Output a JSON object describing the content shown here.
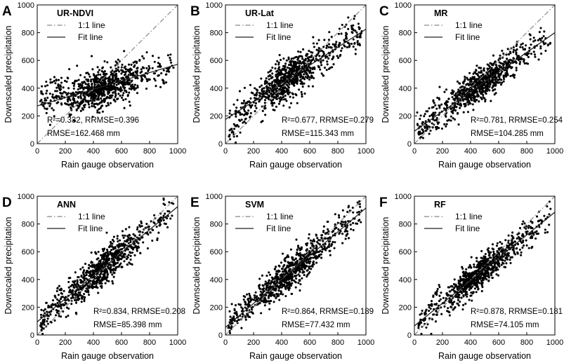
{
  "figure": {
    "legend": {
      "ref_label": "1:1 line",
      "fit_label": "Fit line"
    }
  },
  "chart_data": [
    {
      "type": "scatter",
      "letter": "A",
      "title": "UR-NDVI",
      "xlabel": "Rain gauge observation",
      "ylabel": "Downscaled precipitation",
      "xlim": [
        0,
        1000
      ],
      "ylim": [
        0,
        1000
      ],
      "xticks": [
        0,
        200,
        400,
        600,
        800,
        1000
      ],
      "yticks": [
        0,
        200,
        400,
        600,
        800,
        1000
      ],
      "fit": {
        "slope": 0.3,
        "intercept": 272
      },
      "stats": {
        "line1": "R²=0.332,  RRMSE=0.396",
        "line2": "RMSE=162.468 mm"
      },
      "scatter": {
        "n": 880,
        "noise": 68,
        "jitter": 14,
        "lowmode": 1
      }
    },
    {
      "type": "scatter",
      "letter": "B",
      "title": "UR-Lat",
      "xlabel": "Rain gauge observation",
      "ylabel": "Downscaled precipitation",
      "xlim": [
        0,
        1000
      ],
      "ylim": [
        0,
        1000
      ],
      "xticks": [
        0,
        200,
        400,
        600,
        800,
        1000
      ],
      "yticks": [
        0,
        200,
        400,
        600,
        800,
        1000
      ],
      "fit": {
        "slope": 0.65,
        "intercept": 175
      },
      "stats": {
        "line1": "R²=0.677,  RRMSE=0.279",
        "line2": "RMSE=115.343 mm"
      },
      "scatter": {
        "n": 880,
        "noise": 68,
        "jitter": 12,
        "lowmode": 2
      }
    },
    {
      "type": "scatter",
      "letter": "C",
      "title": "MR",
      "xlabel": "Rain gauge observation",
      "ylabel": "Downscaled precipitation",
      "xlim": [
        0,
        1000
      ],
      "ylim": [
        0,
        1000
      ],
      "xticks": [
        0,
        200,
        400,
        600,
        800,
        1000
      ],
      "yticks": [
        0,
        200,
        400,
        600,
        800,
        1000
      ],
      "fit": {
        "slope": 0.71,
        "intercept": 90
      },
      "stats": {
        "line1": "R²=0.781,  RRMSE=0.254",
        "line2": "RMSE=104.285 mm"
      },
      "scatter": {
        "n": 880,
        "noise": 58,
        "jitter": 10,
        "lowmode": 3
      }
    },
    {
      "type": "scatter",
      "letter": "D",
      "title": "ANN",
      "xlabel": "Rain gauge observation",
      "ylabel": "Downscaled precipitation",
      "xlim": [
        0,
        1000
      ],
      "ylim": [
        0,
        1000
      ],
      "xticks": [
        0,
        200,
        400,
        600,
        800,
        1000
      ],
      "yticks": [
        0,
        200,
        400,
        600,
        800,
        1000
      ],
      "fit": {
        "slope": 0.83,
        "intercept": 95
      },
      "stats": {
        "line1": "R²=0.834,  RRMSE=0.208",
        "line2": "RMSE=85.398 mm"
      },
      "scatter": {
        "n": 880,
        "noise": 62,
        "jitter": 10,
        "lowmode": 4
      }
    },
    {
      "type": "scatter",
      "letter": "E",
      "title": "SVM",
      "xlabel": "Rain gauge observation",
      "ylabel": "Downscaled precipitation",
      "xlim": [
        0,
        1000
      ],
      "ylim": [
        0,
        1000
      ],
      "xticks": [
        0,
        200,
        400,
        600,
        800,
        1000
      ],
      "yticks": [
        0,
        200,
        400,
        600,
        800,
        1000
      ],
      "fit": {
        "slope": 0.86,
        "intercept": 55
      },
      "stats": {
        "line1": "R²=0.864,  RRMSE=0.189",
        "line2": "RMSE=77.432 mm"
      },
      "scatter": {
        "n": 880,
        "noise": 58,
        "jitter": 10,
        "lowmode": 5
      }
    },
    {
      "type": "scatter",
      "letter": "F",
      "title": "RF",
      "xlabel": "Rain gauge observation",
      "ylabel": "Downscaled precipitation",
      "xlim": [
        0,
        1000
      ],
      "ylim": [
        0,
        1000
      ],
      "xticks": [
        0,
        200,
        400,
        600,
        800,
        1000
      ],
      "yticks": [
        0,
        200,
        400,
        600,
        800,
        1000
      ],
      "fit": {
        "slope": 0.82,
        "intercept": 65
      },
      "stats": {
        "line1": "R²=0.878,  RRMSE=0.181",
        "line2": "RMSE=74.105 mm"
      },
      "scatter": {
        "n": 880,
        "noise": 52,
        "jitter": 9,
        "lowmode": 6
      }
    }
  ]
}
